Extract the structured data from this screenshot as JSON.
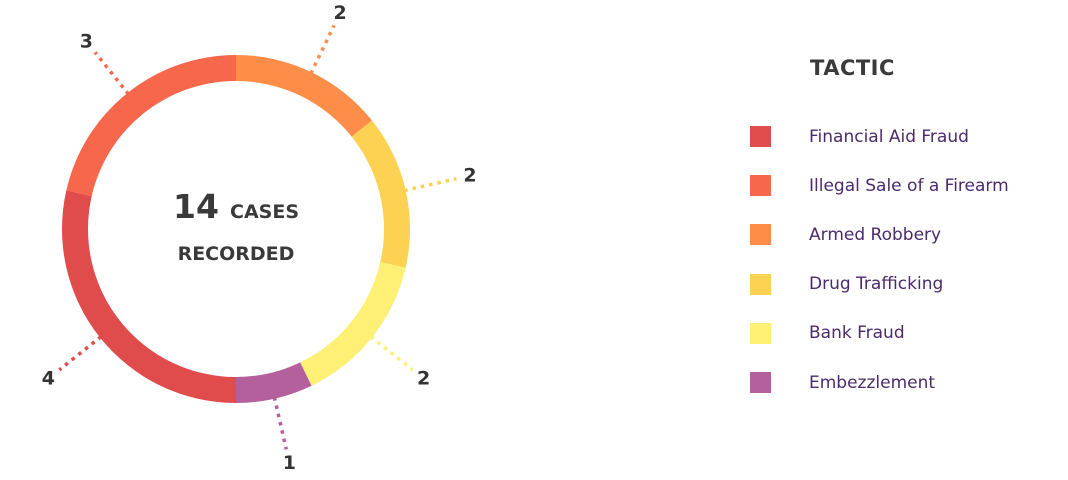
{
  "chart_data": {
    "type": "pie",
    "variant": "donut",
    "total": {
      "number": "14",
      "unit": "CASES",
      "caption": "RECORDED"
    },
    "legend": {
      "title": "TACTIC",
      "placement": "right"
    },
    "slices": [
      {
        "label": "Financial Aid Fraud",
        "value": 4,
        "color": "#e04b4b"
      },
      {
        "label": "Illegal Sale of a Firearm",
        "value": 3,
        "color": "#f7674c"
      },
      {
        "label": "Armed Robbery",
        "value": 2,
        "color": "#fd8d49"
      },
      {
        "label": "Drug Trafficking",
        "value": 2,
        "color": "#fdd152"
      },
      {
        "label": "Bank Fraud",
        "value": 2,
        "color": "#fdf075"
      },
      {
        "label": "Embezzlement",
        "value": 1,
        "color": "#b4609d"
      }
    ]
  }
}
